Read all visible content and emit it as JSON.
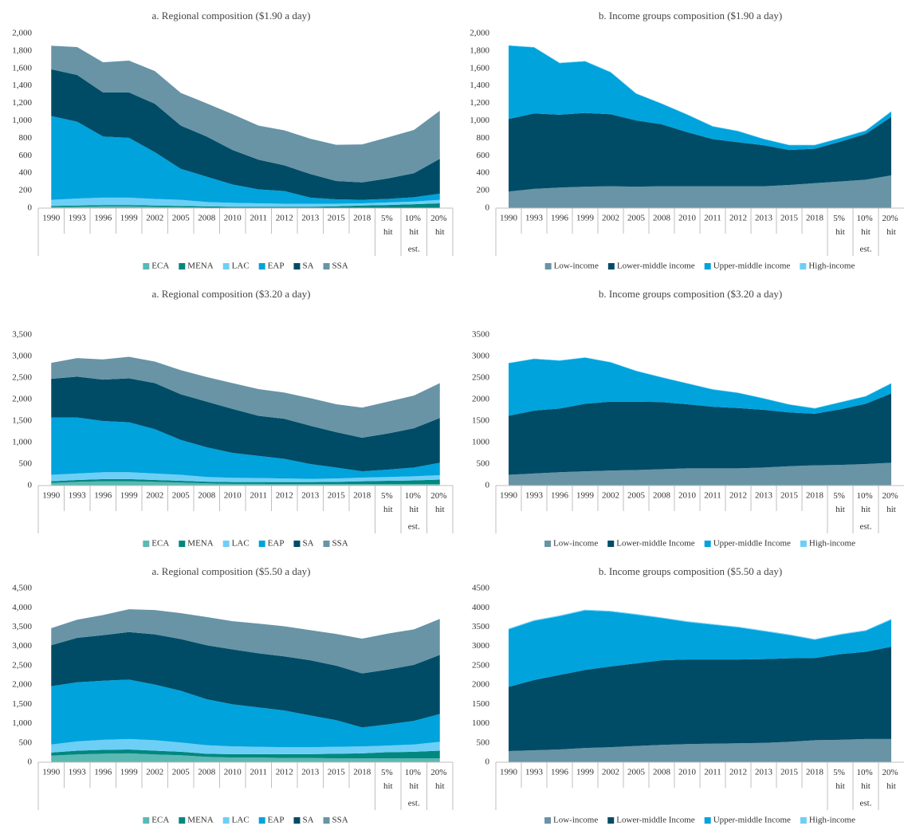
{
  "chart_data": [
    {
      "type": "stacked_area",
      "title": "a. Regional composition ($1.90 a day)",
      "categories": [
        "1990",
        "1993",
        "1996",
        "1999",
        "2002",
        "2005",
        "2008",
        "2010",
        "2011",
        "2012",
        "2013",
        "2015",
        "2018",
        "5% hit",
        "10% hit",
        "20% hit"
      ],
      "category_group": "est.",
      "ylim": [
        0,
        2000
      ],
      "yticks": [
        0,
        200,
        400,
        600,
        800,
        {
          "value": 1000,
          "label": "1,000"
        },
        {
          "value": 1200,
          "label": "1,200"
        },
        {
          "value": 1400,
          "label": "1,400"
        },
        {
          "value": 1600,
          "label": "1,600"
        },
        {
          "value": 1800,
          "label": "1,800"
        },
        {
          "value": 2000,
          "label": "2,000"
        }
      ],
      "series": [
        {
          "name": "ECA",
          "color": "#5bb8b2",
          "values": [
            10,
            15,
            20,
            20,
            15,
            10,
            5,
            5,
            5,
            5,
            5,
            5,
            5,
            5,
            5,
            5
          ]
        },
        {
          "name": "MENA",
          "color": "#00877f",
          "values": [
            15,
            15,
            15,
            15,
            15,
            15,
            15,
            10,
            10,
            10,
            10,
            15,
            25,
            30,
            40,
            50
          ]
        },
        {
          "name": "LAC",
          "color": "#6dcff6",
          "values": [
            70,
            80,
            85,
            85,
            75,
            70,
            50,
            45,
            40,
            35,
            35,
            30,
            25,
            30,
            30,
            40
          ]
        },
        {
          "name": "EAP",
          "color": "#00a3dc",
          "values": [
            960,
            880,
            700,
            685,
            535,
            355,
            290,
            210,
            160,
            145,
            70,
            50,
            40,
            40,
            50,
            70
          ]
        },
        {
          "name": "SA",
          "color": "#004c66",
          "values": [
            535,
            535,
            505,
            520,
            555,
            495,
            460,
            395,
            340,
            295,
            270,
            210,
            200,
            235,
            275,
            400
          ]
        },
        {
          "name": "SSA",
          "color": "#6894a6",
          "values": [
            270,
            320,
            345,
            365,
            375,
            375,
            380,
            410,
            390,
            400,
            405,
            415,
            435,
            470,
            495,
            550
          ]
        }
      ]
    },
    {
      "type": "stacked_area",
      "title": "b. Income groups composition ($1.90 a day)",
      "categories": [
        "1990",
        "1993",
        "1996",
        "1999",
        "2002",
        "2005",
        "2008",
        "2010",
        "2011",
        "2012",
        "2013",
        "2015",
        "2018",
        "5% hit",
        "10% hit",
        "20% hit"
      ],
      "category_group": "est.",
      "ylim": [
        0,
        2000
      ],
      "yticks": [
        0,
        200,
        400,
        600,
        800,
        {
          "value": 1000,
          "label": "1,000"
        },
        {
          "value": 1200,
          "label": "1,200"
        },
        {
          "value": 1400,
          "label": "1,400"
        },
        {
          "value": 1600,
          "label": "1,600"
        },
        {
          "value": 1800,
          "label": "1,800"
        },
        {
          "value": 2000,
          "label": "2,000"
        }
      ],
      "series": [
        {
          "name": "Low-income",
          "color": "#6894a6",
          "values": [
            190,
            220,
            235,
            245,
            250,
            245,
            250,
            250,
            250,
            250,
            250,
            265,
            285,
            305,
            325,
            375
          ]
        },
        {
          "name": "Lower-middle income",
          "color": "#004c66",
          "values": [
            830,
            865,
            835,
            845,
            825,
            760,
            710,
            620,
            540,
            505,
            470,
            400,
            395,
            455,
            525,
            670
          ]
        },
        {
          "name": "Upper-middle income",
          "color": "#00a3dc",
          "values": [
            840,
            755,
            590,
            590,
            480,
            305,
            235,
            200,
            145,
            125,
            70,
            55,
            40,
            40,
            35,
            60
          ]
        },
        {
          "name": "High-income",
          "color": "#6dcff6",
          "values": [
            5,
            5,
            5,
            5,
            5,
            5,
            5,
            5,
            5,
            5,
            5,
            5,
            5,
            5,
            5,
            5
          ]
        }
      ]
    },
    {
      "type": "stacked_area",
      "title": "a. Regional composition ($3.20 a day)",
      "categories": [
        "1990",
        "1993",
        "1996",
        "1999",
        "2002",
        "2005",
        "2008",
        "2010",
        "2011",
        "2012",
        "2013",
        "2015",
        "2018",
        "5% hit",
        "10% hit",
        "20% hit"
      ],
      "category_group": "est.",
      "ylim": [
        0,
        3500
      ],
      "yticks": [
        0,
        500,
        {
          "value": 1000,
          "label": "1,000"
        },
        {
          "value": 1500,
          "label": "1,500"
        },
        {
          "value": 2000,
          "label": "2,000"
        },
        {
          "value": 2500,
          "label": "2,500"
        },
        {
          "value": 3000,
          "label": "3,000"
        },
        {
          "value": 3500,
          "label": "3,500"
        }
      ],
      "series": [
        {
          "name": "ECA",
          "color": "#5bb8b2",
          "values": [
            60,
            85,
            100,
            100,
            85,
            70,
            50,
            40,
            40,
            35,
            35,
            35,
            35,
            35,
            35,
            35
          ]
        },
        {
          "name": "MENA",
          "color": "#00877f",
          "values": [
            40,
            45,
            50,
            50,
            45,
            40,
            40,
            40,
            40,
            45,
            45,
            50,
            65,
            75,
            85,
            105
          ]
        },
        {
          "name": "LAC",
          "color": "#6dcff6",
          "values": [
            150,
            150,
            160,
            160,
            150,
            140,
            110,
            100,
            95,
            85,
            75,
            80,
            85,
            90,
            95,
            100
          ]
        },
        {
          "name": "EAP",
          "color": "#00a3dc",
          "values": [
            1330,
            1300,
            1190,
            1160,
            1030,
            810,
            690,
            580,
            515,
            455,
            345,
            255,
            145,
            170,
            205,
            290
          ]
        },
        {
          "name": "SA",
          "color": "#004c66",
          "values": [
            900,
            950,
            960,
            1020,
            1070,
            1060,
            1060,
            1020,
            930,
            930,
            890,
            820,
            780,
            840,
            910,
            1040
          ]
        },
        {
          "name": "SSA",
          "color": "#6894a6",
          "values": [
            370,
            430,
            470,
            500,
            500,
            560,
            570,
            600,
            620,
            610,
            640,
            650,
            700,
            740,
            760,
            810
          ]
        }
      ]
    },
    {
      "type": "stacked_area",
      "title": "b. Income groups composition ($3.20 a day)",
      "categories": [
        "1990",
        "1993",
        "1996",
        "1999",
        "2002",
        "2005",
        "2008",
        "2010",
        "2011",
        "2012",
        "2013",
        "2015",
        "2018",
        "5% hit",
        "10% hit",
        "20% hit"
      ],
      "category_group": "est.",
      "ylim": [
        0,
        3500
      ],
      "yticks": [
        0,
        500,
        1000,
        1500,
        2000,
        2500,
        3000,
        3500
      ],
      "series": [
        {
          "name": "Low-income",
          "color": "#6894a6",
          "values": [
            250,
            280,
            310,
            330,
            350,
            360,
            380,
            400,
            400,
            400,
            420,
            450,
            470,
            480,
            500,
            530
          ]
        },
        {
          "name": "Lower-middle Income",
          "color": "#004c66",
          "values": [
            1370,
            1460,
            1480,
            1570,
            1600,
            1590,
            1560,
            1490,
            1430,
            1400,
            1340,
            1250,
            1200,
            1290,
            1400,
            1610
          ]
        },
        {
          "name": "Upper-middle Income",
          "color": "#00a3dc",
          "values": [
            1220,
            1200,
            1110,
            1070,
            910,
            710,
            570,
            480,
            400,
            350,
            260,
            180,
            120,
            160,
            170,
            230
          ]
        },
        {
          "name": "High-income",
          "color": "#6dcff6",
          "values": [
            10,
            10,
            10,
            10,
            10,
            10,
            10,
            10,
            10,
            10,
            10,
            10,
            10,
            10,
            10,
            10
          ]
        }
      ]
    },
    {
      "type": "stacked_area",
      "title": "a. Regional composition ($5.50 a day)",
      "categories": [
        "1990",
        "1993",
        "1996",
        "1999",
        "2002",
        "2005",
        "2008",
        "2010",
        "2011",
        "2012",
        "2013",
        "2015",
        "2018",
        "5% hit",
        "10% hit",
        "20% hit"
      ],
      "category_group": "est.",
      "ylim": [
        0,
        4500
      ],
      "yticks": [
        0,
        500,
        {
          "value": 1000,
          "label": "1,000"
        },
        {
          "value": 1500,
          "label": "1,500"
        },
        {
          "value": 2000,
          "label": "2,000"
        },
        {
          "value": 2500,
          "label": "2,500"
        },
        {
          "value": 3000,
          "label": "3,000"
        },
        {
          "value": 3500,
          "label": "3,500"
        },
        {
          "value": 4000,
          "label": "4,000"
        },
        {
          "value": 4500,
          "label": "4,500"
        }
      ],
      "series": [
        {
          "name": "ECA",
          "color": "#5bb8b2",
          "values": [
            170,
            200,
            220,
            230,
            200,
            180,
            140,
            120,
            120,
            110,
            110,
            100,
            100,
            100,
            100,
            100
          ]
        },
        {
          "name": "MENA",
          "color": "#00877f",
          "values": [
            80,
            100,
            100,
            100,
            100,
            90,
            80,
            90,
            90,
            100,
            100,
            120,
            130,
            160,
            170,
            200
          ]
        },
        {
          "name": "LAC",
          "color": "#6dcff6",
          "values": [
            210,
            240,
            260,
            270,
            270,
            240,
            220,
            200,
            190,
            180,
            180,
            180,
            180,
            170,
            190,
            230
          ]
        },
        {
          "name": "EAP",
          "color": "#00a3dc",
          "values": [
            1510,
            1530,
            1530,
            1540,
            1440,
            1340,
            1190,
            1090,
            1020,
            950,
            820,
            690,
            490,
            550,
            610,
            720
          ]
        },
        {
          "name": "SA",
          "color": "#004c66",
          "values": [
            1060,
            1150,
            1180,
            1230,
            1300,
            1340,
            1400,
            1420,
            1400,
            1400,
            1430,
            1410,
            1400,
            1420,
            1450,
            1530
          ]
        },
        {
          "name": "SSA",
          "color": "#6894a6",
          "values": [
            440,
            470,
            520,
            590,
            630,
            670,
            730,
            730,
            770,
            780,
            780,
            820,
            900,
            930,
            920,
            930
          ]
        }
      ]
    },
    {
      "type": "stacked_area",
      "title": "b. Income groups composition ($5.50 a day)",
      "categories": [
        "1990",
        "1993",
        "1996",
        "1999",
        "2002",
        "2005",
        "2008",
        "2010",
        "2011",
        "2012",
        "2013",
        "2015",
        "2018",
        "5% hit",
        "10% hit",
        "20% hit"
      ],
      "category_group": "est.",
      "ylim": [
        0,
        4500
      ],
      "yticks": [
        0,
        500,
        1000,
        1500,
        2000,
        2500,
        3000,
        3500,
        4000,
        4500
      ],
      "series": [
        {
          "name": "Low-income",
          "color": "#6894a6",
          "values": [
            290,
            310,
            330,
            370,
            390,
            420,
            450,
            470,
            480,
            490,
            500,
            530,
            570,
            580,
            600,
            600
          ]
        },
        {
          "name": "Lower-middle Income",
          "color": "#004c66",
          "values": [
            1660,
            1820,
            1930,
            2020,
            2090,
            2140,
            2190,
            2190,
            2180,
            2170,
            2170,
            2160,
            2130,
            2220,
            2260,
            2390
          ]
        },
        {
          "name": "Upper-middle Income",
          "color": "#00a3dc",
          "values": [
            1490,
            1530,
            1520,
            1540,
            1420,
            1260,
            1090,
            970,
            900,
            830,
            720,
            600,
            470,
            500,
            540,
            700
          ]
        },
        {
          "name": "High-income",
          "color": "#6dcff6",
          "values": [
            20,
            20,
            20,
            20,
            20,
            20,
            20,
            20,
            20,
            20,
            20,
            20,
            20,
            20,
            20,
            20
          ]
        }
      ]
    }
  ]
}
